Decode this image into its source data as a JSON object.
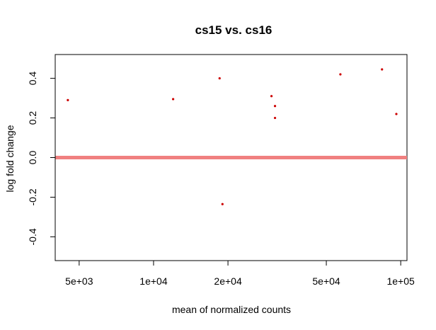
{
  "chart_data": {
    "type": "scatter",
    "title": "cs15 vs. cs16",
    "xlabel": "mean of normalized counts",
    "ylabel": "log fold change",
    "x_scale": "log",
    "xlim": [
      4000,
      106000
    ],
    "ylim": [
      -0.52,
      0.52
    ],
    "x_ticks": [
      {
        "value": 5000,
        "label": "5e+03"
      },
      {
        "value": 10000,
        "label": "1e+04"
      },
      {
        "value": 20000,
        "label": "2e+04"
      },
      {
        "value": 50000,
        "label": "5e+04"
      },
      {
        "value": 100000,
        "label": "1e+05"
      }
    ],
    "y_ticks": [
      {
        "value": -0.4,
        "label": "-0.4"
      },
      {
        "value": -0.2,
        "label": "-0.2"
      },
      {
        "value": 0.0,
        "label": "0.0"
      },
      {
        "value": 0.2,
        "label": "0.2"
      },
      {
        "value": 0.4,
        "label": "0.4"
      }
    ],
    "reference_line": {
      "y": 0,
      "color": "#f08080"
    },
    "point_color": "#cc0000",
    "grid": false,
    "points": [
      {
        "x": 4500,
        "y": 0.29
      },
      {
        "x": 12000,
        "y": 0.295
      },
      {
        "x": 18500,
        "y": 0.4
      },
      {
        "x": 19000,
        "y": -0.235
      },
      {
        "x": 30000,
        "y": 0.31
      },
      {
        "x": 31000,
        "y": 0.26
      },
      {
        "x": 31000,
        "y": 0.2
      },
      {
        "x": 57000,
        "y": 0.42
      },
      {
        "x": 84000,
        "y": 0.445
      },
      {
        "x": 96000,
        "y": 0.22
      }
    ]
  }
}
